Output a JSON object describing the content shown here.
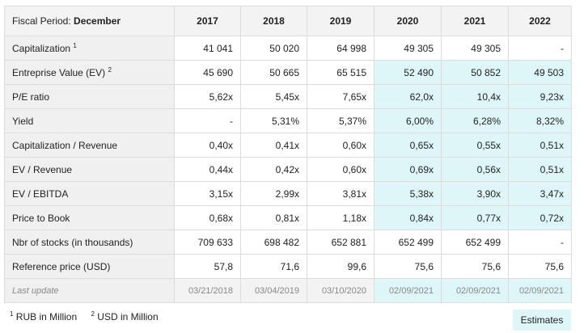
{
  "table": {
    "period_label": "Fiscal Period:",
    "period_value": "December",
    "years": [
      "2017",
      "2018",
      "2019",
      "2020",
      "2021",
      "2022"
    ],
    "estimate_start_index": 3,
    "rows": [
      {
        "label": "Capitalization",
        "footnote": "1",
        "values": [
          "41 041",
          "50 020",
          "64 998",
          "49 305",
          "49 305",
          "-"
        ],
        "estimated_cols": []
      },
      {
        "label": "Entreprise Value (EV)",
        "footnote": "2",
        "values": [
          "45 690",
          "50 665",
          "65 515",
          "52 490",
          "50 852",
          "49 503"
        ],
        "estimated_cols": [
          3,
          4,
          5
        ]
      },
      {
        "label": "P/E ratio",
        "footnote": "",
        "values": [
          "5,62x",
          "5,45x",
          "7,65x",
          "62,0x",
          "10,4x",
          "9,23x"
        ],
        "estimated_cols": [
          3,
          4,
          5
        ]
      },
      {
        "label": "Yield",
        "footnote": "",
        "values": [
          "-",
          "5,31%",
          "5,37%",
          "6,00%",
          "6,28%",
          "8,32%"
        ],
        "estimated_cols": [
          3,
          4,
          5
        ]
      },
      {
        "label": "Capitalization / Revenue",
        "footnote": "",
        "values": [
          "0,40x",
          "0,41x",
          "0,60x",
          "0,65x",
          "0,55x",
          "0,51x"
        ],
        "estimated_cols": [
          3,
          4,
          5
        ]
      },
      {
        "label": "EV / Revenue",
        "footnote": "",
        "values": [
          "0,44x",
          "0,42x",
          "0,60x",
          "0,69x",
          "0,56x",
          "0,51x"
        ],
        "estimated_cols": [
          3,
          4,
          5
        ]
      },
      {
        "label": "EV / EBITDA",
        "footnote": "",
        "values": [
          "3,15x",
          "2,99x",
          "3,81x",
          "5,38x",
          "3,90x",
          "3,47x"
        ],
        "estimated_cols": [
          3,
          4,
          5
        ]
      },
      {
        "label": "Price to Book",
        "footnote": "",
        "values": [
          "0,68x",
          "0,81x",
          "1,18x",
          "0,84x",
          "0,77x",
          "0,72x"
        ],
        "estimated_cols": [
          3,
          4,
          5
        ]
      },
      {
        "label": "Nbr of stocks (in thousands)",
        "footnote": "",
        "values": [
          "709 633",
          "698 482",
          "652 881",
          "652 499",
          "652 499",
          "-"
        ],
        "estimated_cols": []
      },
      {
        "label": "Reference price (USD)",
        "footnote": "",
        "values": [
          "57,8",
          "71,6",
          "99,6",
          "75,6",
          "75,6",
          "75,6"
        ],
        "estimated_cols": []
      }
    ],
    "last_update": {
      "label": "Last update",
      "values": [
        "03/21/2018",
        "03/04/2019",
        "03/10/2020",
        "02/09/2021",
        "02/09/2021",
        "02/09/2021"
      ],
      "estimated_cols": [
        3,
        4,
        5
      ]
    }
  },
  "footnotes": [
    {
      "marker": "1",
      "text": "RUB in Million"
    },
    {
      "marker": "2",
      "text": "USD in Million"
    }
  ],
  "estimates_badge": "Estimates",
  "colors": {
    "estimate_bg": "#dff6f8",
    "label_bg": "#f0f0f0",
    "border": "#dcdcdc"
  }
}
